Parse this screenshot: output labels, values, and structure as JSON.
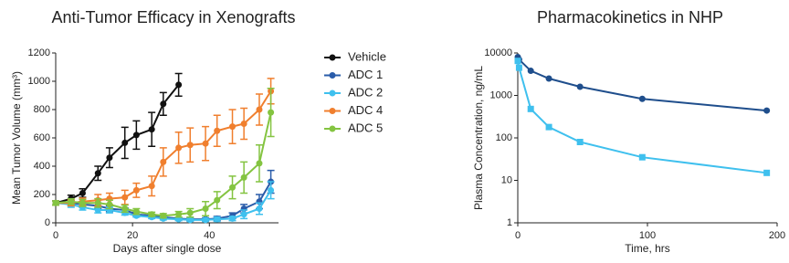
{
  "chart_data": [
    {
      "type": "line",
      "title": "Anti-Tumor Efficacy in Xenografts",
      "xlabel": "Days after single dose",
      "ylabel": "Mean Tumor Volume (mm³)",
      "x": [
        0,
        4,
        7,
        11,
        14,
        18,
        21,
        25,
        28,
        32,
        35,
        39,
        42,
        46,
        49,
        53,
        56
      ],
      "xlim": [
        0,
        58
      ],
      "xticks": [
        0,
        20,
        40
      ],
      "ylim": [
        0,
        1200
      ],
      "yticks": [
        0,
        200,
        400,
        600,
        800,
        1000,
        1200
      ],
      "legend": "right",
      "series": [
        {
          "name": "Vehicle",
          "color": "#111111",
          "marker": "circle",
          "values": [
            140,
            170,
            210,
            350,
            460,
            565,
            620,
            660,
            840,
            975,
            null,
            null,
            null,
            null,
            null,
            null,
            null
          ],
          "errors": [
            15,
            25,
            30,
            50,
            70,
            110,
            100,
            120,
            80,
            80,
            null,
            null,
            null,
            null,
            null,
            null,
            null
          ]
        },
        {
          "name": "ADC 1",
          "color": "#2a5caa",
          "marker": "circle",
          "values": [
            140,
            140,
            130,
            120,
            100,
            90,
            60,
            50,
            40,
            30,
            25,
            25,
            30,
            50,
            100,
            150,
            290
          ],
          "errors": [
            15,
            20,
            20,
            20,
            20,
            15,
            15,
            10,
            10,
            10,
            10,
            10,
            15,
            20,
            30,
            50,
            80
          ]
        },
        {
          "name": "ADC 2",
          "color": "#3fc0ee",
          "marker": "circle",
          "values": [
            140,
            130,
            110,
            90,
            90,
            70,
            50,
            40,
            30,
            25,
            20,
            20,
            25,
            30,
            60,
            100,
            230
          ],
          "errors": [
            15,
            20,
            20,
            20,
            20,
            15,
            10,
            10,
            10,
            10,
            10,
            10,
            15,
            15,
            30,
            40,
            60
          ]
        },
        {
          "name": "ADC 4",
          "color": "#f07f2e",
          "marker": "circle",
          "values": [
            140,
            140,
            150,
            160,
            170,
            180,
            230,
            260,
            430,
            530,
            550,
            560,
            650,
            680,
            700,
            800,
            930
          ],
          "errors": [
            15,
            20,
            25,
            40,
            40,
            50,
            50,
            70,
            100,
            110,
            120,
            120,
            110,
            120,
            110,
            110,
            90
          ]
        },
        {
          "name": "ADC 5",
          "color": "#84c441",
          "marker": "circle",
          "values": [
            140,
            150,
            140,
            140,
            130,
            100,
            80,
            60,
            50,
            60,
            70,
            100,
            160,
            250,
            320,
            420,
            780
          ],
          "errors": [
            15,
            20,
            25,
            30,
            30,
            25,
            20,
            15,
            15,
            20,
            30,
            50,
            60,
            80,
            110,
            130,
            170
          ]
        }
      ]
    },
    {
      "type": "line",
      "title": "Pharmacokinetics in NHP",
      "xlabel": "Time, hrs",
      "ylabel": "Plasma Concentration, ng/mL",
      "x": [
        0,
        1,
        10,
        24,
        48,
        96,
        192
      ],
      "xlim": [
        0,
        200
      ],
      "xticks": [
        0,
        100,
        200
      ],
      "ylim": [
        1,
        10000
      ],
      "yticks": [
        1,
        10,
        100,
        1000,
        10000
      ],
      "yscale": "log",
      "series": [
        {
          "color": "#1f4e8c",
          "marker": "circle",
          "values": [
            8000,
            7000,
            3800,
            2500,
            1600,
            830,
            440
          ]
        },
        {
          "color": "#3fc0ee",
          "marker": "square",
          "values": [
            6500,
            4500,
            480,
            180,
            80,
            35,
            15
          ]
        }
      ]
    }
  ]
}
